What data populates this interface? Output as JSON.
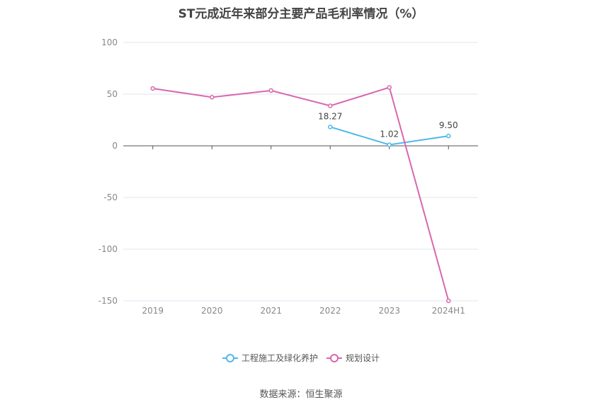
{
  "title": "ST元成近年来部分主要产品毛利率情况（%）",
  "source_label": "数据来源：恒生聚源",
  "chart_data": {
    "type": "line",
    "categories": [
      "2019",
      "2020",
      "2021",
      "2022",
      "2023",
      "2024H1"
    ],
    "ylim": [
      -150,
      100
    ],
    "yticks": [
      100,
      50,
      0,
      -50,
      -100,
      -150
    ],
    "grid": true,
    "legend_position": "bottom",
    "series": [
      {
        "name": "工程施工及绿化养护",
        "color": "#4fb8ea",
        "values": [
          null,
          null,
          null,
          18.27,
          1.02,
          9.5
        ],
        "labels": [
          null,
          null,
          null,
          "18.27",
          "1.02",
          "9.50"
        ]
      },
      {
        "name": "规划设计",
        "color": "#d867ad",
        "values": [
          55.5,
          47,
          53.5,
          38.7,
          56.5,
          -150
        ],
        "labels": [
          null,
          null,
          null,
          null,
          null,
          null
        ]
      }
    ]
  }
}
